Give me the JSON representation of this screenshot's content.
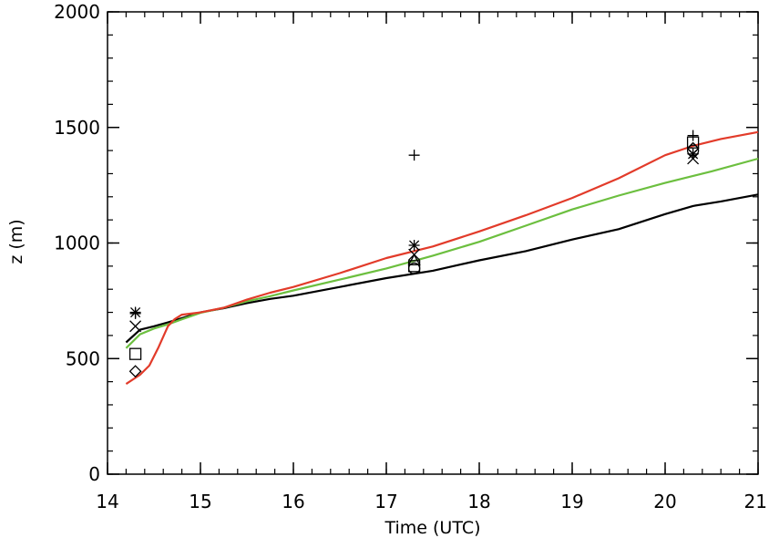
{
  "chart_data": {
    "type": "line",
    "title": "",
    "xlabel": "Time (UTC)",
    "ylabel": "z (m)",
    "xlim": [
      14,
      21
    ],
    "ylim": [
      0,
      2000
    ],
    "xticks": [
      14,
      15,
      16,
      17,
      18,
      19,
      20,
      21
    ],
    "yticks": [
      0,
      500,
      1000,
      1500,
      2000
    ],
    "x_minor_step": 0.2,
    "y_minor_step": 100,
    "grid": false,
    "series": [
      {
        "color": "#000000",
        "x": [
          14.2,
          14.35,
          14.5,
          14.65,
          14.8,
          15.0,
          15.25,
          15.5,
          15.75,
          16.0,
          16.5,
          17.0,
          17.5,
          18.0,
          18.5,
          19.0,
          19.5,
          20.0,
          20.3,
          20.6,
          21.0
        ],
        "y": [
          570,
          625,
          640,
          657,
          675,
          700,
          718,
          740,
          758,
          772,
          810,
          848,
          880,
          925,
          965,
          1015,
          1060,
          1125,
          1160,
          1180,
          1210
        ]
      },
      {
        "color": "#6cbf3f",
        "x": [
          14.2,
          14.35,
          14.5,
          14.65,
          14.8,
          15.0,
          15.25,
          15.5,
          15.75,
          16.0,
          16.5,
          17.0,
          17.5,
          18.0,
          18.5,
          19.0,
          19.5,
          20.0,
          20.5,
          21.0
        ],
        "y": [
          545,
          605,
          630,
          648,
          670,
          698,
          720,
          748,
          770,
          795,
          842,
          890,
          945,
          1005,
          1075,
          1145,
          1205,
          1260,
          1310,
          1365
        ]
      },
      {
        "color": "#e23b2a",
        "x": [
          14.2,
          14.35,
          14.45,
          14.55,
          14.65,
          14.72,
          14.8,
          15.0,
          15.25,
          15.5,
          15.75,
          16.0,
          16.5,
          17.0,
          17.5,
          18.0,
          18.5,
          19.0,
          19.5,
          20.0,
          20.3,
          20.6,
          21.0
        ],
        "y": [
          390,
          430,
          470,
          550,
          640,
          670,
          690,
          700,
          720,
          755,
          785,
          810,
          870,
          935,
          985,
          1050,
          1120,
          1195,
          1280,
          1380,
          1420,
          1450,
          1480
        ]
      }
    ],
    "markers": [
      {
        "symbol": "asterisk",
        "x": 14.3,
        "y": 700
      },
      {
        "symbol": "plus",
        "x": 14.3,
        "y": 695
      },
      {
        "symbol": "cross",
        "x": 14.3,
        "y": 640
      },
      {
        "symbol": "square",
        "x": 14.3,
        "y": 520
      },
      {
        "symbol": "diamond",
        "x": 14.3,
        "y": 445
      },
      {
        "symbol": "plus",
        "x": 17.3,
        "y": 1380
      },
      {
        "symbol": "asterisk",
        "x": 17.3,
        "y": 990
      },
      {
        "symbol": "cross",
        "x": 17.3,
        "y": 950
      },
      {
        "symbol": "triangle",
        "x": 17.3,
        "y": 925
      },
      {
        "symbol": "square",
        "x": 17.3,
        "y": 900
      },
      {
        "symbol": "circle",
        "x": 17.3,
        "y": 890
      },
      {
        "symbol": "plus",
        "x": 20.3,
        "y": 1465
      },
      {
        "symbol": "square",
        "x": 20.3,
        "y": 1435
      },
      {
        "symbol": "diamond",
        "x": 20.3,
        "y": 1410
      },
      {
        "symbol": "circle",
        "x": 20.3,
        "y": 1400
      },
      {
        "symbol": "asterisk",
        "x": 20.3,
        "y": 1385
      },
      {
        "symbol": "cross",
        "x": 20.3,
        "y": 1365
      }
    ]
  }
}
